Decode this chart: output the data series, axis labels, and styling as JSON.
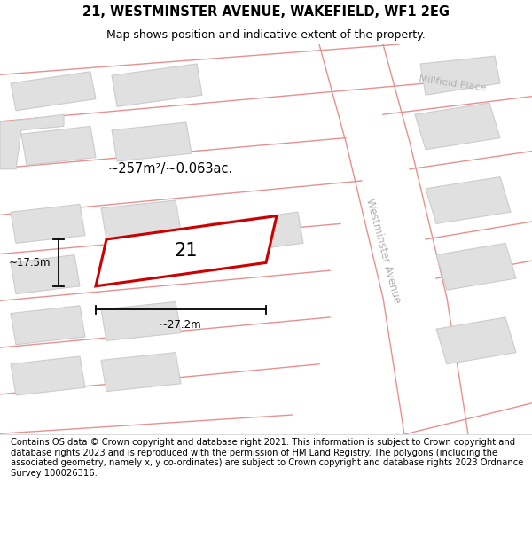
{
  "title": "21, WESTMINSTER AVENUE, WAKEFIELD, WF1 2EG",
  "subtitle": "Map shows position and indicative extent of the property.",
  "footer": "Contains OS data © Crown copyright and database right 2021. This information is subject to Crown copyright and database rights 2023 and is reproduced with the permission of HM Land Registry. The polygons (including the associated geometry, namely x, y co-ordinates) are subject to Crown copyright and database rights 2023 Ordnance Survey 100026316.",
  "area_text": "~257m²/~0.063ac.",
  "label_17": "~17.5m",
  "label_27": "~27.2m",
  "plot_label": "21",
  "map_bg": "#f2f2f2",
  "road_edge": "#e89090",
  "building_color": "#e0e0e0",
  "building_edge": "#cccccc",
  "plot_edge_color": "#cc0000",
  "street_label_color": "#b0b0b0",
  "street_label_1": "Millfield Place",
  "street_label_2": "Westminster Avenue",
  "title_fontsize": 10.5,
  "subtitle_fontsize": 9,
  "footer_fontsize": 7.2
}
